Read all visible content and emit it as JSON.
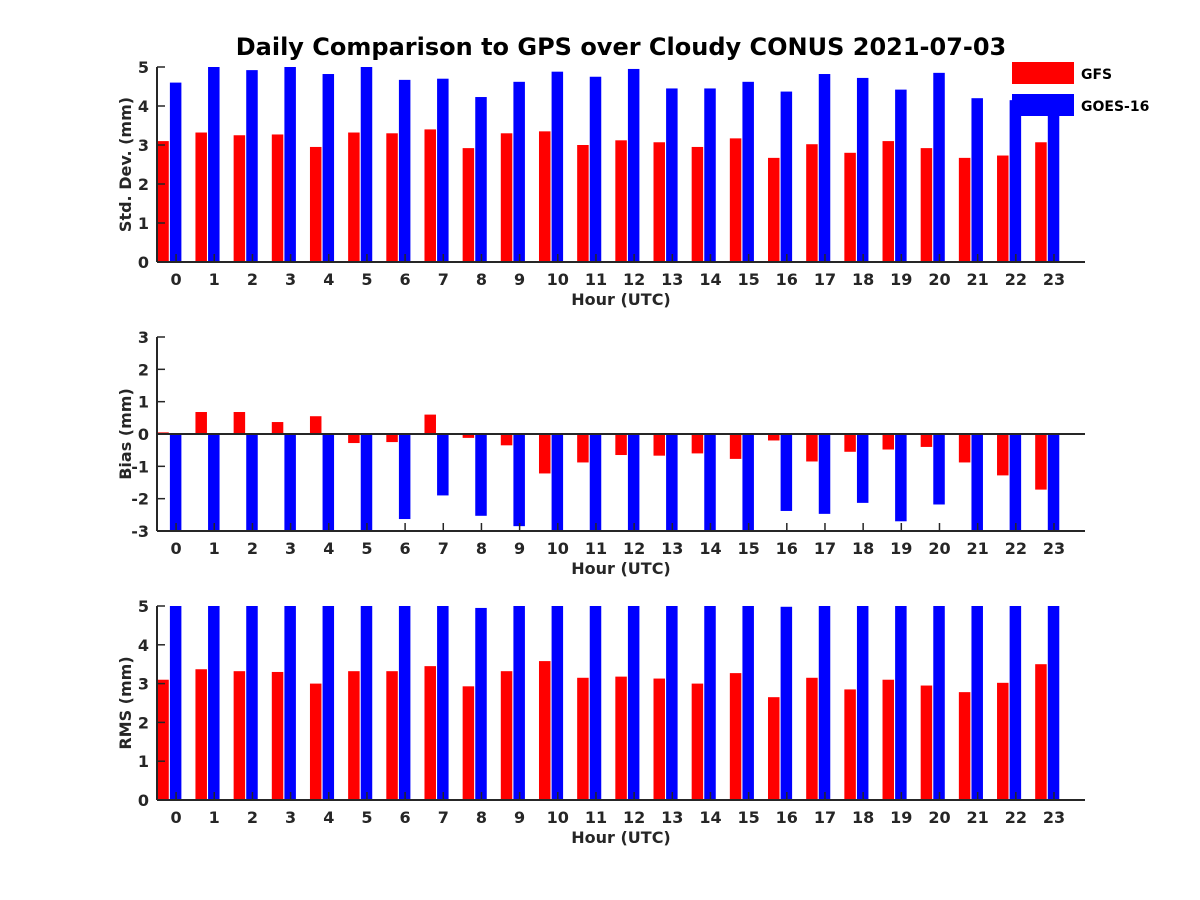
{
  "title": "Daily Comparison to GPS over Cloudy CONUS 2021-07-03",
  "colors": {
    "GFS": "#ff0000",
    "GOES-16": "#0000ff",
    "axis": "#262626"
  },
  "legend": [
    {
      "name": "GFS",
      "color": "#ff0000"
    },
    {
      "name": "GOES-16",
      "color": "#0000ff"
    }
  ],
  "chart_data": [
    {
      "type": "bar",
      "xlabel": "Hour (UTC)",
      "ylabel": "Std. Dev. (mm)",
      "ylim": [
        0,
        5
      ],
      "yticks": [
        0,
        1,
        2,
        3,
        4,
        5
      ],
      "categories": [
        "0",
        "1",
        "2",
        "3",
        "4",
        "5",
        "6",
        "7",
        "8",
        "9",
        "10",
        "11",
        "12",
        "13",
        "14",
        "15",
        "16",
        "17",
        "18",
        "19",
        "20",
        "21",
        "22",
        "23"
      ],
      "legend_placement": "top-right",
      "series": [
        {
          "name": "GFS",
          "values": [
            3.1,
            3.32,
            3.25,
            3.27,
            2.95,
            3.32,
            3.3,
            3.4,
            2.92,
            3.3,
            3.35,
            3.0,
            3.12,
            3.07,
            2.95,
            3.17,
            2.67,
            3.02,
            2.8,
            3.1,
            2.92,
            2.67,
            2.73,
            3.07
          ]
        },
        {
          "name": "GOES-16",
          "values": [
            4.6,
            5.0,
            4.92,
            5.0,
            4.82,
            5.0,
            4.67,
            4.7,
            4.23,
            4.62,
            4.88,
            4.75,
            4.95,
            4.45,
            4.45,
            4.62,
            4.37,
            4.82,
            4.72,
            4.42,
            4.85,
            4.2,
            4.15,
            3.95
          ]
        }
      ]
    },
    {
      "type": "bar",
      "xlabel": "Hour (UTC)",
      "ylabel": "Bias (mm)",
      "ylim": [
        -3,
        3
      ],
      "yticks": [
        -3,
        -2,
        -1,
        0,
        1,
        2,
        3
      ],
      "categories": [
        "0",
        "1",
        "2",
        "3",
        "4",
        "5",
        "6",
        "7",
        "8",
        "9",
        "10",
        "11",
        "12",
        "13",
        "14",
        "15",
        "16",
        "17",
        "18",
        "19",
        "20",
        "21",
        "22",
        "23"
      ],
      "series": [
        {
          "name": "GFS",
          "values": [
            0.05,
            0.68,
            0.68,
            0.37,
            0.55,
            -0.28,
            -0.25,
            0.6,
            -0.12,
            -0.35,
            -1.22,
            -0.88,
            -0.65,
            -0.67,
            -0.6,
            -0.77,
            -0.2,
            -0.85,
            -0.55,
            -0.48,
            -0.4,
            -0.88,
            -1.28,
            -1.72
          ]
        },
        {
          "name": "GOES-16",
          "values": [
            -3.0,
            -3.0,
            -3.0,
            -3.0,
            -3.0,
            -3.0,
            -2.63,
            -1.9,
            -2.53,
            -2.85,
            -3.0,
            -3.0,
            -3.0,
            -3.0,
            -3.0,
            -2.97,
            -2.38,
            -2.47,
            -2.13,
            -2.7,
            -2.18,
            -3.0,
            -3.0,
            -3.0
          ]
        }
      ]
    },
    {
      "type": "bar",
      "xlabel": "Hour (UTC)",
      "ylabel": "RMS (mm)",
      "ylim": [
        0,
        5
      ],
      "yticks": [
        0,
        1,
        2,
        3,
        4,
        5
      ],
      "categories": [
        "0",
        "1",
        "2",
        "3",
        "4",
        "5",
        "6",
        "7",
        "8",
        "9",
        "10",
        "11",
        "12",
        "13",
        "14",
        "15",
        "16",
        "17",
        "18",
        "19",
        "20",
        "21",
        "22",
        "23"
      ],
      "series": [
        {
          "name": "GFS",
          "values": [
            3.1,
            3.37,
            3.32,
            3.3,
            3.0,
            3.32,
            3.32,
            3.45,
            2.93,
            3.32,
            3.58,
            3.15,
            3.18,
            3.13,
            3.0,
            3.27,
            2.65,
            3.15,
            2.85,
            3.1,
            2.95,
            2.78,
            3.02,
            3.5
          ]
        },
        {
          "name": "GOES-16",
          "values": [
            5.0,
            5.0,
            5.0,
            5.0,
            5.0,
            5.0,
            5.0,
            5.0,
            4.95,
            5.0,
            5.0,
            5.0,
            5.0,
            5.0,
            5.0,
            5.0,
            4.98,
            5.0,
            5.0,
            5.0,
            5.0,
            5.0,
            5.0,
            5.0
          ]
        }
      ]
    }
  ]
}
